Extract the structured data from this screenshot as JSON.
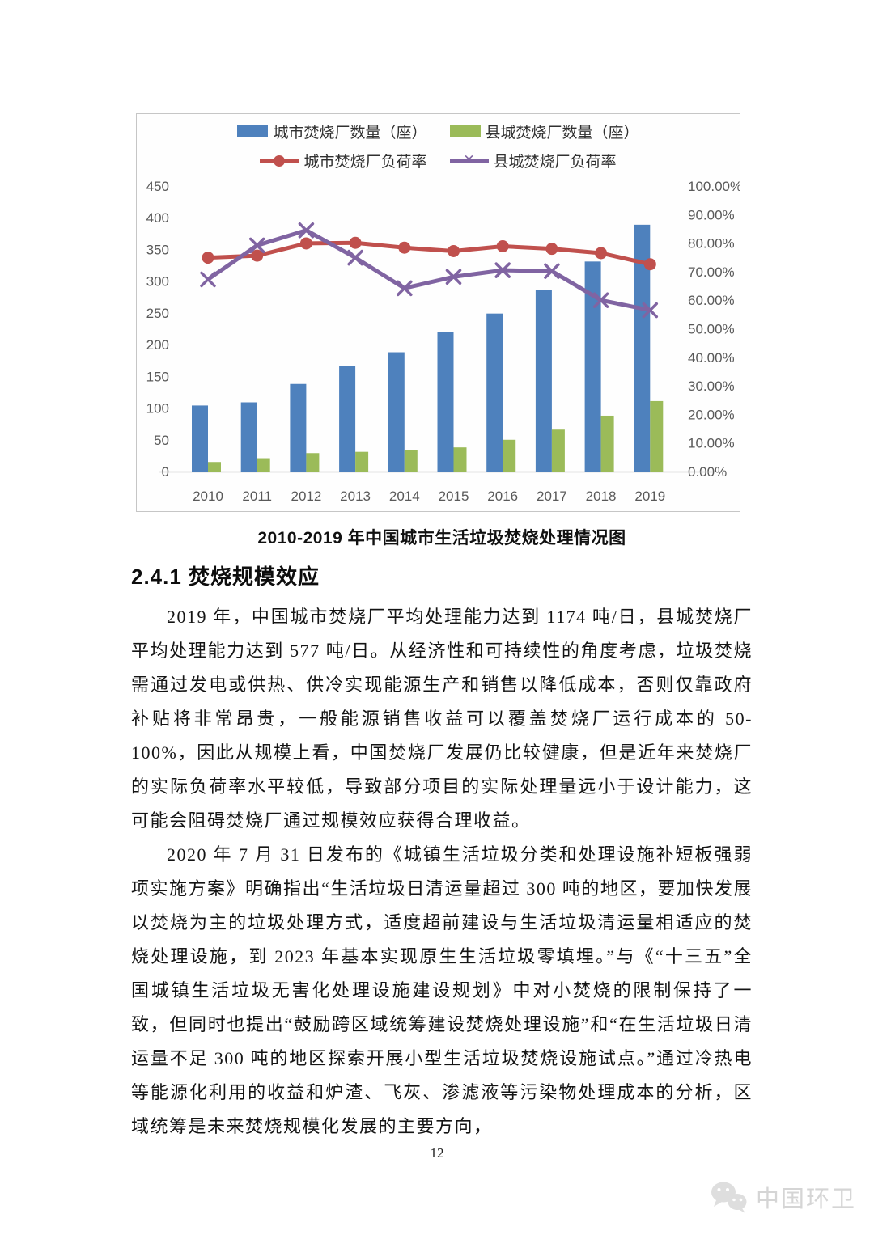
{
  "caption": "2010-2019 年中国城市生活垃圾焚烧处理情况图",
  "section": {
    "heading": "2.4.1 焚烧规模效应"
  },
  "paragraphs": {
    "p1": "2019 年，中国城市焚烧厂平均处理能力达到 1174 吨/日，县城焚烧厂平均处理能力达到 577 吨/日。从经济性和可持续性的角度考虑，垃圾焚烧需通过发电或供热、供冷实现能源生产和销售以降低成本，否则仅靠政府补贴将非常昂贵，一般能源销售收益可以覆盖焚烧厂运行成本的 50-100%，因此从规模上看，中国焚烧厂发展仍比较健康，但是近年来焚烧厂的实际负荷率水平较低，导致部分项目的实际处理量远小于设计能力，这可能会阻碍焚烧厂通过规模效应获得合理收益。",
    "p2": "2020 年 7 月 31 日发布的《城镇生活垃圾分类和处理设施补短板强弱项实施方案》明确指出“生活垃圾日清运量超过 300 吨的地区，要加快发展以焚烧为主的垃圾处理方式，适度超前建设与生活垃圾清运量相适应的焚烧处理设施，到 2023 年基本实现原生生活垃圾零填埋。”与《“十三五”全国城镇生活垃圾无害化处理设施建设规划》中对小焚烧的限制保持了一致，但同时也提出“鼓励跨区域统筹建设焚烧处理设施”和“在生活垃圾日清运量不足 300 吨的地区探索开展小型生活垃圾焚烧设施试点。”通过冷热电等能源化利用的收益和炉渣、飞灰、渗滤液等污染物处理成本的分析，区域统筹是未来焚烧规模化发展的主要方向，"
  },
  "page": {
    "number": "12"
  },
  "watermark": {
    "label": "中国环卫"
  },
  "chart_data": {
    "type": "bar",
    "subtype": "combo-bar-line-dual-axis",
    "categories": [
      "2010",
      "2011",
      "2012",
      "2013",
      "2014",
      "2015",
      "2016",
      "2017",
      "2018",
      "2019"
    ],
    "series": [
      {
        "name": "城市焚烧厂数量（座）",
        "kind": "bar",
        "axis": "left",
        "color": "#4E81BD",
        "marker": "none",
        "values": [
          104,
          109,
          138,
          166,
          188,
          220,
          249,
          286,
          331,
          389
        ]
      },
      {
        "name": "县城焚烧厂数量（座）",
        "kind": "bar",
        "axis": "left",
        "color": "#9BBB59",
        "marker": "none",
        "values": [
          15,
          21,
          29,
          31,
          34,
          38,
          50,
          66,
          88,
          111
        ]
      },
      {
        "name": "城市焚烧厂负荷率",
        "kind": "line",
        "axis": "right",
        "color": "#C0504D",
        "marker": "circle",
        "values": [
          74.9,
          75.6,
          79.9,
          80.1,
          78.4,
          77.2,
          78.9,
          78.0,
          76.5,
          72.6
        ]
      },
      {
        "name": "县城焚烧厂负荷率",
        "kind": "line",
        "axis": "right",
        "color": "#8064A2",
        "marker": "x",
        "values": [
          67.3,
          79.2,
          84.5,
          74.9,
          64.2,
          68.2,
          70.5,
          70.2,
          60.0,
          56.5
        ]
      }
    ],
    "left_axis": {
      "min": 0,
      "max": 450,
      "step": 50
    },
    "right_axis": {
      "min": 0,
      "max": 100,
      "step": 10,
      "suffix": "%",
      "decimals": 2
    },
    "legend_position": "top",
    "grid": false,
    "axis_text_color": "#595959",
    "axis_line_color": "#c9c9c9"
  }
}
